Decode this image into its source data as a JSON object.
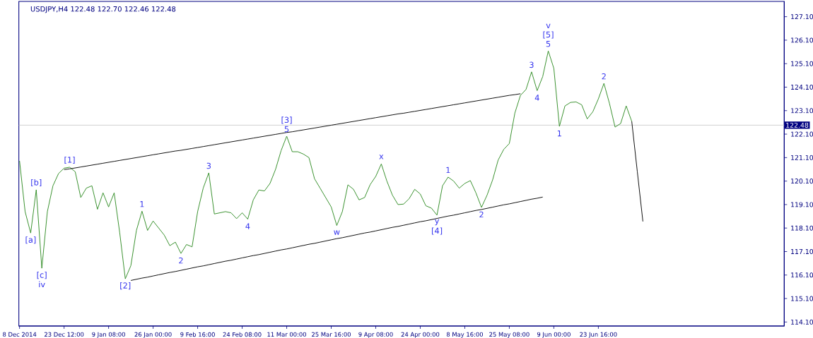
{
  "chart_data": {
    "type": "line",
    "title": "USDJPY,H4  122.48 122.70 122.46 122.48",
    "categories": [
      "8 Dec 2014",
      null,
      null,
      null,
      null,
      null,
      null,
      null,
      "23 Dec 12:00",
      null,
      null,
      null,
      null,
      null,
      null,
      null,
      "9 Jan 08:00",
      null,
      null,
      null,
      null,
      null,
      null,
      null,
      "26 Jan 00:00",
      null,
      null,
      null,
      null,
      null,
      null,
      null,
      "9 Feb 16:00",
      null,
      null,
      null,
      null,
      null,
      null,
      null,
      "24 Feb 08:00",
      null,
      null,
      null,
      null,
      null,
      null,
      null,
      "11 Mar 00:00",
      null,
      null,
      null,
      null,
      null,
      null,
      null,
      "25 Mar 16:00",
      null,
      null,
      null,
      null,
      null,
      null,
      null,
      "9 Apr 08:00",
      null,
      null,
      null,
      null,
      null,
      null,
      null,
      "24 Apr 00:00",
      null,
      null,
      null,
      null,
      null,
      null,
      null,
      "8 May 16:00",
      null,
      null,
      null,
      null,
      null,
      null,
      null,
      "25 May 08:00",
      null,
      null,
      null,
      null,
      null,
      null,
      null,
      "9 Jun 00:00",
      null,
      null,
      null,
      null,
      null,
      null,
      null,
      "23 Jun 16:00",
      null,
      null,
      null,
      null,
      null,
      null,
      null,
      null,
      null,
      null,
      null,
      null,
      null,
      null,
      null,
      null,
      null,
      null,
      null,
      null,
      null,
      null,
      null,
      null,
      null,
      null,
      null,
      null,
      null,
      null,
      null,
      null,
      null
    ],
    "ylim": [
      113.93,
      127.75
    ],
    "yticks": [
      {
        "value": 114.1,
        "label": "114.10"
      },
      {
        "value": 115.1,
        "label": "115.10"
      },
      {
        "value": 116.1,
        "label": "116.10"
      },
      {
        "value": 117.1,
        "label": "117.10"
      },
      {
        "value": 118.1,
        "label": "118.10"
      },
      {
        "value": 119.1,
        "label": "119.10"
      },
      {
        "value": 120.1,
        "label": "120.10"
      },
      {
        "value": 121.1,
        "label": "121.10"
      },
      {
        "value": 122.1,
        "label": "122.10"
      },
      {
        "value": 123.1,
        "label": "123.10"
      },
      {
        "value": 124.1,
        "label": "124.10"
      },
      {
        "value": 125.1,
        "label": "125.10"
      },
      {
        "value": 126.1,
        "label": "126.10"
      },
      {
        "value": 127.1,
        "label": "127.10"
      }
    ],
    "series": [
      {
        "color": "#2e8b22",
        "values": [
          120.96,
          118.8,
          117.89,
          119.73,
          116.39,
          118.8,
          119.9,
          120.42,
          120.65,
          120.69,
          120.5,
          119.4,
          119.8,
          119.9,
          118.9,
          119.6,
          119.0,
          119.6,
          117.9,
          115.94,
          116.5,
          118.0,
          118.82,
          118.0,
          118.4,
          118.1,
          117.8,
          117.35,
          117.5,
          117.02,
          117.4,
          117.3,
          118.8,
          119.8,
          120.45,
          118.7,
          118.75,
          118.8,
          118.75,
          118.5,
          118.75,
          118.48,
          119.3,
          119.72,
          119.68,
          120.0,
          120.6,
          121.4,
          122.01,
          121.35,
          121.35,
          121.25,
          121.1,
          120.2,
          119.8,
          119.4,
          119.0,
          118.21,
          118.8,
          119.94,
          119.75,
          119.3,
          119.4,
          119.95,
          120.3,
          120.83,
          120.1,
          119.5,
          119.1,
          119.12,
          119.35,
          119.75,
          119.55,
          119.05,
          118.95,
          118.65,
          119.9,
          120.27,
          120.1,
          119.8,
          120.0,
          120.12,
          119.6,
          118.98,
          119.5,
          120.15,
          121.0,
          121.45,
          121.7,
          123.0,
          123.75,
          124.0,
          124.75,
          123.95,
          124.55,
          125.64,
          124.9,
          122.43,
          123.3,
          123.45,
          123.47,
          123.35,
          122.75,
          123.05,
          123.6,
          124.26,
          123.4,
          122.4,
          122.55,
          123.3,
          122.64,
          null,
          null,
          null,
          null,
          null,
          null,
          null,
          null,
          null,
          null,
          null,
          null,
          null,
          null,
          null,
          null,
          null,
          null,
          null,
          null,
          null,
          null,
          null,
          null,
          null,
          null,
          null
        ]
      },
      {
        "color": "#000000",
        "values": [
          null,
          null,
          null,
          null,
          null,
          null,
          null,
          null,
          120.59,
          120.62,
          120.66,
          120.7,
          120.74,
          120.78,
          120.82,
          120.86,
          120.9,
          120.94,
          120.98,
          121.02,
          121.06,
          121.1,
          121.14,
          121.18,
          121.22,
          121.26,
          121.3,
          121.34,
          121.38,
          121.41,
          121.45,
          121.49,
          121.53,
          121.57,
          121.61,
          121.65,
          121.69,
          121.73,
          121.77,
          121.81,
          121.85,
          121.89,
          121.93,
          121.97,
          122.01,
          122.05,
          122.09,
          122.13,
          122.17,
          122.2,
          122.24,
          122.28,
          122.32,
          122.36,
          122.4,
          122.44,
          122.48,
          122.52,
          122.56,
          122.6,
          122.64,
          122.68,
          122.72,
          122.76,
          122.8,
          122.84,
          122.88,
          122.92,
          122.96,
          122.99,
          123.03,
          123.07,
          123.11,
          123.15,
          123.19,
          123.23,
          123.27,
          123.31,
          123.35,
          123.39,
          123.43,
          123.47,
          123.51,
          123.55,
          123.59,
          123.63,
          123.67,
          123.71,
          123.75,
          123.78,
          123.82,
          null,
          null,
          null,
          null,
          null,
          null,
          null,
          null,
          null,
          null,
          null,
          null,
          null,
          null,
          null,
          null,
          null,
          null,
          null,
          null,
          null,
          null,
          null,
          null,
          null,
          null,
          null,
          null,
          null,
          null,
          null,
          null,
          null,
          null,
          null,
          null,
          null,
          null,
          null,
          null,
          null,
          null,
          null,
          null,
          null,
          null,
          null
        ]
      },
      {
        "color": "#000000",
        "values": [
          null,
          null,
          null,
          null,
          null,
          null,
          null,
          null,
          null,
          null,
          null,
          null,
          null,
          null,
          null,
          null,
          null,
          null,
          null,
          null,
          115.87,
          115.92,
          115.97,
          116.01,
          116.06,
          116.11,
          116.16,
          116.21,
          116.25,
          116.3,
          116.35,
          116.4,
          116.45,
          116.49,
          116.54,
          116.59,
          116.64,
          116.69,
          116.73,
          116.78,
          116.83,
          116.88,
          116.93,
          116.97,
          117.02,
          117.07,
          117.12,
          117.17,
          117.21,
          117.26,
          117.31,
          117.36,
          117.41,
          117.45,
          117.5,
          117.55,
          117.6,
          117.65,
          117.69,
          117.74,
          117.79,
          117.84,
          117.89,
          117.93,
          117.98,
          118.03,
          118.08,
          118.13,
          118.17,
          118.22,
          118.27,
          118.32,
          118.37,
          118.41,
          118.46,
          118.51,
          118.56,
          118.61,
          118.65,
          118.7,
          118.75,
          118.8,
          118.85,
          118.89,
          118.94,
          118.99,
          119.04,
          119.09,
          119.13,
          119.18,
          119.23,
          119.28,
          119.33,
          119.37,
          119.42,
          null,
          null,
          null,
          null,
          null,
          null,
          null,
          null,
          null,
          null,
          null,
          null,
          null,
          null,
          null,
          null,
          null,
          null,
          null,
          null,
          null,
          null,
          null,
          null,
          null,
          null,
          null,
          null,
          null,
          null,
          null,
          null,
          null,
          null,
          null,
          null,
          null,
          null,
          null,
          null,
          null,
          null,
          null
        ]
      },
      {
        "color": "#000000",
        "values": [
          null,
          null,
          null,
          null,
          null,
          null,
          null,
          null,
          null,
          null,
          null,
          null,
          null,
          null,
          null,
          null,
          null,
          null,
          null,
          null,
          null,
          null,
          null,
          null,
          null,
          null,
          null,
          null,
          null,
          null,
          null,
          null,
          null,
          null,
          null,
          null,
          null,
          null,
          null,
          null,
          null,
          null,
          null,
          null,
          null,
          null,
          null,
          null,
          null,
          null,
          null,
          null,
          null,
          null,
          null,
          null,
          null,
          null,
          null,
          null,
          null,
          null,
          null,
          null,
          null,
          null,
          null,
          null,
          null,
          null,
          null,
          null,
          null,
          null,
          null,
          null,
          null,
          null,
          null,
          null,
          null,
          null,
          null,
          null,
          null,
          null,
          null,
          null,
          null,
          null,
          null,
          null,
          null,
          null,
          null,
          null,
          null,
          null,
          null,
          null,
          null,
          null,
          null,
          null,
          null,
          null,
          null,
          null,
          null,
          null,
          122.64,
          120.5,
          118.38,
          null,
          null,
          null,
          null,
          null,
          null,
          null,
          null,
          null,
          null,
          null,
          null,
          null,
          null,
          null,
          null,
          null,
          null,
          null,
          null,
          null,
          null,
          null,
          null,
          null
        ]
      }
    ],
    "ref_lines": [
      {
        "axis": "y",
        "value": 122.48,
        "label": "122.48",
        "color": "#c8c8c8"
      }
    ],
    "annotations": [
      {
        "text": "[c]",
        "y": 116.39
      },
      {
        "text": "iv",
        "y": 116.39
      },
      {
        "text": "[a]",
        "y": 117.89
      },
      {
        "text": "[b]",
        "y": 119.73
      },
      {
        "text": "[1]",
        "y": 120.69
      },
      {
        "text": "[2]",
        "y": 115.94
      },
      {
        "text": "1",
        "y": 118.82
      },
      {
        "text": "2",
        "y": 117.02
      },
      {
        "text": "3",
        "y": 120.45
      },
      {
        "text": "4",
        "y": 118.48
      },
      {
        "text": "5",
        "y": 122.01
      },
      {
        "text": "[3]",
        "y": 122.01
      },
      {
        "text": "w",
        "y": 118.21
      },
      {
        "text": "x",
        "y": 120.83
      },
      {
        "text": "y",
        "y": 118.65
      },
      {
        "text": "[4]",
        "y": 118.65
      },
      {
        "text": "1",
        "y": 120.27
      },
      {
        "text": "2",
        "y": 118.98
      },
      {
        "text": "3",
        "y": 124.75
      },
      {
        "text": "4",
        "y": 123.95
      },
      {
        "text": "5",
        "y": 125.64
      },
      {
        "text": "[5]",
        "y": 125.64
      },
      {
        "text": "v",
        "y": 125.64
      },
      {
        "text": "1",
        "y": 122.43
      },
      {
        "text": "2",
        "y": 124.26
      }
    ]
  }
}
